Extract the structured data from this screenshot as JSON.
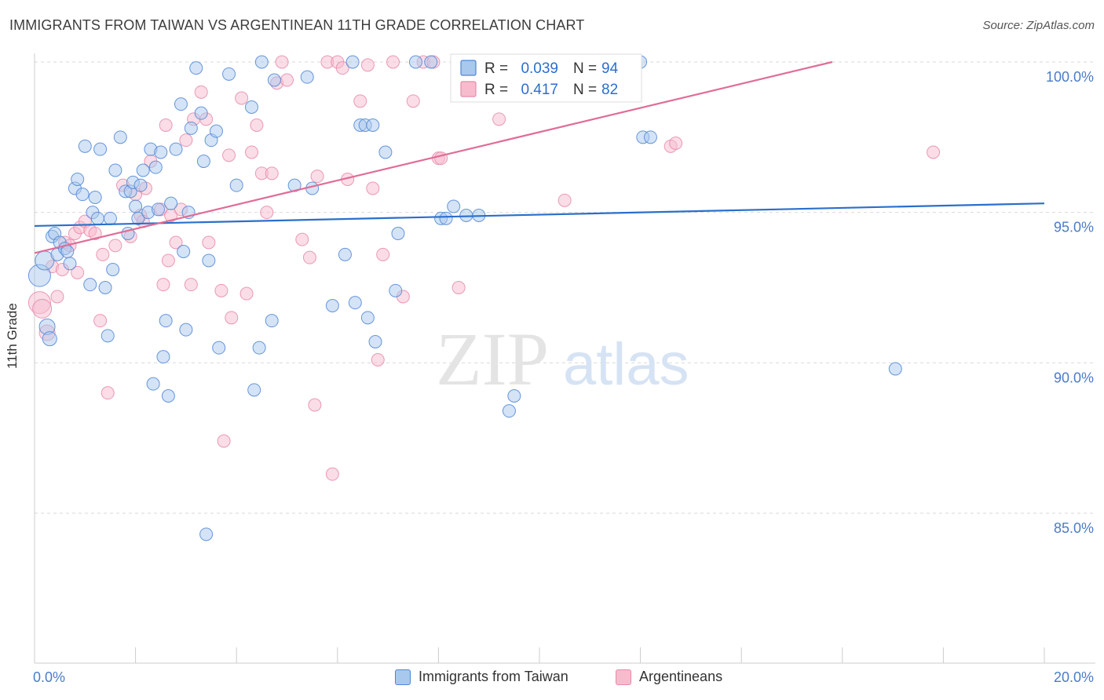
{
  "header": {
    "title": "IMMIGRANTS FROM TAIWAN VS ARGENTINEAN 11TH GRADE CORRELATION CHART",
    "source": "Source: ZipAtlas.com"
  },
  "watermark": {
    "zip": "ZIP",
    "atlas": "atlas"
  },
  "colors": {
    "blue_fill": "#a9c8ee",
    "blue_stroke": "#4f86d6",
    "blue_line": "#2a6fcc",
    "pink_fill": "#f6bccd",
    "pink_stroke": "#e88aa9",
    "pink_line": "#e06d97",
    "tick_label": "#4a7cc9",
    "grid": "#d9d9d9"
  },
  "legend_top": {
    "rows": [
      {
        "r_label": "R = ",
        "r_value": "0.039",
        "n_label": "N = ",
        "n_value": "94"
      },
      {
        "r_label": "R = ",
        "r_value": "0.417",
        "n_label": "N = ",
        "n_value": "82"
      }
    ]
  },
  "legend_bottom": {
    "items": [
      "Immigrants from Taiwan",
      "Argentineans"
    ]
  },
  "chart_data": {
    "type": "scatter",
    "title": "IMMIGRANTS FROM TAIWAN VS ARGENTINEAN 11TH GRADE CORRELATION CHART",
    "xlabel": "",
    "ylabel": "11th Grade",
    "xlim": [
      0,
      20
    ],
    "ylim": [
      80.5,
      100.5
    ],
    "x_tick_labels": [
      "0.0%",
      "20.0%"
    ],
    "y_ticks": [
      85,
      90,
      95,
      100
    ],
    "y_tick_labels": [
      "85.0%",
      "90.0%",
      "95.0%",
      "100.0%"
    ],
    "grid": true,
    "legend_position": "top-center",
    "series": [
      {
        "name": "Immigrants from Taiwan",
        "R": 0.039,
        "N": 94,
        "trend": {
          "x0": 0,
          "y0": 94.55,
          "x1": 20,
          "y1": 95.3
        },
        "points": [
          [
            0.1,
            92.9,
            14
          ],
          [
            0.2,
            93.4,
            12
          ],
          [
            0.25,
            91.2,
            10
          ],
          [
            0.3,
            90.8,
            9
          ],
          [
            0.35,
            94.2,
            8
          ],
          [
            0.4,
            94.3,
            8
          ],
          [
            0.45,
            93.6,
            8
          ],
          [
            0.5,
            94.0,
            8
          ],
          [
            0.6,
            93.8,
            8
          ],
          [
            0.65,
            93.7,
            8
          ],
          [
            0.7,
            93.3,
            8
          ],
          [
            0.8,
            95.8,
            8
          ],
          [
            0.85,
            96.1,
            8
          ],
          [
            0.95,
            95.6,
            8
          ],
          [
            1.0,
            97.2,
            8
          ],
          [
            1.1,
            92.6,
            8
          ],
          [
            1.15,
            95.0,
            8
          ],
          [
            1.2,
            95.5,
            8
          ],
          [
            1.25,
            94.8,
            8
          ],
          [
            1.3,
            97.1,
            8
          ],
          [
            1.4,
            92.5,
            8
          ],
          [
            1.45,
            90.9,
            8
          ],
          [
            1.55,
            93.1,
            8
          ],
          [
            1.6,
            96.4,
            8
          ],
          [
            1.7,
            97.5,
            8
          ],
          [
            1.8,
            95.7,
            8
          ],
          [
            1.85,
            94.3,
            8
          ],
          [
            1.9,
            95.7,
            8
          ],
          [
            1.95,
            96.0,
            8
          ],
          [
            2.0,
            95.2,
            8
          ],
          [
            2.05,
            94.8,
            8
          ],
          [
            2.1,
            95.9,
            8
          ],
          [
            2.15,
            96.4,
            8
          ],
          [
            2.25,
            95.0,
            8
          ],
          [
            2.3,
            97.1,
            8
          ],
          [
            2.35,
            89.3,
            8
          ],
          [
            2.4,
            96.5,
            8
          ],
          [
            2.45,
            95.1,
            8
          ],
          [
            2.5,
            97.0,
            8
          ],
          [
            2.55,
            90.2,
            8
          ],
          [
            2.6,
            91.4,
            8
          ],
          [
            2.65,
            88.9,
            8
          ],
          [
            2.7,
            95.3,
            8
          ],
          [
            2.8,
            97.1,
            8
          ],
          [
            2.9,
            98.6,
            8
          ],
          [
            2.95,
            93.7,
            8
          ],
          [
            3.0,
            91.1,
            8
          ],
          [
            3.05,
            95.0,
            8
          ],
          [
            3.1,
            97.8,
            8
          ],
          [
            3.2,
            99.8,
            8
          ],
          [
            3.3,
            98.3,
            8
          ],
          [
            3.35,
            96.7,
            8
          ],
          [
            3.45,
            93.4,
            8
          ],
          [
            3.5,
            97.4,
            8
          ],
          [
            3.6,
            97.7,
            8
          ],
          [
            3.65,
            90.5,
            8
          ],
          [
            3.85,
            99.6,
            8
          ],
          [
            4.0,
            95.9,
            8
          ],
          [
            4.3,
            98.5,
            8
          ],
          [
            4.35,
            89.1,
            8
          ],
          [
            4.45,
            90.5,
            8
          ],
          [
            4.5,
            100.0,
            8
          ],
          [
            4.7,
            91.4,
            8
          ],
          [
            4.75,
            99.4,
            8
          ],
          [
            5.15,
            95.9,
            8
          ],
          [
            5.4,
            99.5,
            8
          ],
          [
            5.5,
            95.8,
            8
          ],
          [
            5.9,
            91.9,
            8
          ],
          [
            6.15,
            93.6,
            8
          ],
          [
            6.3,
            100.0,
            8
          ],
          [
            6.35,
            92.0,
            8
          ],
          [
            6.45,
            97.9,
            8
          ],
          [
            6.55,
            97.9,
            8
          ],
          [
            6.6,
            91.5,
            8
          ],
          [
            6.7,
            97.9,
            8
          ],
          [
            6.75,
            90.7,
            8
          ],
          [
            6.95,
            97.0,
            8
          ],
          [
            7.15,
            92.4,
            8
          ],
          [
            7.2,
            94.3,
            8
          ],
          [
            7.55,
            100.0,
            8
          ],
          [
            7.85,
            100.0,
            8
          ],
          [
            8.05,
            94.8,
            8
          ],
          [
            8.15,
            94.8,
            8
          ],
          [
            8.3,
            95.2,
            8
          ],
          [
            8.55,
            94.9,
            8
          ],
          [
            8.8,
            94.9,
            8
          ],
          [
            9.4,
            88.4,
            8
          ],
          [
            9.5,
            88.9,
            8
          ],
          [
            12.0,
            100.0,
            8
          ],
          [
            12.05,
            97.5,
            8
          ],
          [
            12.2,
            97.5,
            8
          ],
          [
            17.05,
            89.8,
            8
          ],
          [
            3.4,
            84.3,
            8
          ],
          [
            1.5,
            94.8,
            8
          ]
        ]
      },
      {
        "name": "Argentineans",
        "R": 0.417,
        "N": 82,
        "trend": {
          "x0": 0,
          "y0": 93.65,
          "x1": 15.8,
          "y1": 100.0
        },
        "points": [
          [
            0.1,
            92.0,
            14
          ],
          [
            0.15,
            91.8,
            12
          ],
          [
            0.25,
            91.0,
            10
          ],
          [
            0.35,
            93.2,
            8
          ],
          [
            0.45,
            92.2,
            8
          ],
          [
            0.55,
            93.1,
            8
          ],
          [
            0.6,
            94.0,
            8
          ],
          [
            0.7,
            93.9,
            8
          ],
          [
            0.8,
            94.3,
            8
          ],
          [
            0.85,
            93.0,
            8
          ],
          [
            0.9,
            94.5,
            8
          ],
          [
            1.0,
            94.7,
            8
          ],
          [
            1.1,
            94.4,
            8
          ],
          [
            1.2,
            94.3,
            8
          ],
          [
            1.3,
            91.4,
            8
          ],
          [
            1.35,
            93.6,
            8
          ],
          [
            1.45,
            89.0,
            8
          ],
          [
            1.6,
            93.9,
            8
          ],
          [
            1.75,
            95.9,
            8
          ],
          [
            1.9,
            94.2,
            8
          ],
          [
            2.0,
            95.6,
            8
          ],
          [
            2.1,
            94.9,
            8
          ],
          [
            2.15,
            94.7,
            8
          ],
          [
            2.2,
            95.8,
            8
          ],
          [
            2.3,
            96.7,
            8
          ],
          [
            2.5,
            95.1,
            8
          ],
          [
            2.55,
            92.6,
            8
          ],
          [
            2.6,
            97.9,
            8
          ],
          [
            2.65,
            93.4,
            8
          ],
          [
            2.7,
            94.9,
            8
          ],
          [
            2.8,
            94.0,
            8
          ],
          [
            2.9,
            95.1,
            8
          ],
          [
            3.0,
            97.4,
            8
          ],
          [
            3.1,
            92.6,
            8
          ],
          [
            3.15,
            98.1,
            8
          ],
          [
            3.3,
            99.0,
            8
          ],
          [
            3.4,
            98.1,
            8
          ],
          [
            3.45,
            94.0,
            8
          ],
          [
            3.7,
            92.4,
            8
          ],
          [
            3.75,
            87.4,
            8
          ],
          [
            3.85,
            96.9,
            8
          ],
          [
            3.9,
            91.5,
            8
          ],
          [
            4.1,
            98.8,
            8
          ],
          [
            4.2,
            92.3,
            8
          ],
          [
            4.3,
            97.0,
            8
          ],
          [
            4.4,
            97.9,
            8
          ],
          [
            4.5,
            96.3,
            8
          ],
          [
            4.6,
            95.0,
            8
          ],
          [
            4.7,
            96.3,
            8
          ],
          [
            4.8,
            99.3,
            8
          ],
          [
            4.9,
            100.0,
            8
          ],
          [
            5.0,
            99.4,
            8
          ],
          [
            5.3,
            94.1,
            8
          ],
          [
            5.45,
            93.5,
            8
          ],
          [
            5.55,
            88.6,
            8
          ],
          [
            5.6,
            96.2,
            8
          ],
          [
            5.8,
            100.0,
            8
          ],
          [
            5.9,
            86.3,
            8
          ],
          [
            6.0,
            100.0,
            8
          ],
          [
            6.1,
            99.8,
            8
          ],
          [
            6.2,
            96.1,
            8
          ],
          [
            6.45,
            98.7,
            8
          ],
          [
            6.6,
            99.9,
            8
          ],
          [
            6.7,
            95.8,
            8
          ],
          [
            6.8,
            90.1,
            8
          ],
          [
            6.9,
            93.6,
            8
          ],
          [
            7.1,
            100.0,
            8
          ],
          [
            7.3,
            92.2,
            8
          ],
          [
            7.5,
            98.7,
            8
          ],
          [
            7.7,
            100.0,
            8
          ],
          [
            7.9,
            100.0,
            8
          ],
          [
            8.0,
            96.8,
            8
          ],
          [
            8.05,
            96.8,
            8
          ],
          [
            8.4,
            92.5,
            8
          ],
          [
            8.6,
            100.0,
            8
          ],
          [
            8.9,
            100.0,
            8
          ],
          [
            9.2,
            98.1,
            8
          ],
          [
            10.5,
            95.4,
            8
          ],
          [
            12.6,
            97.2,
            8
          ],
          [
            12.7,
            97.3,
            8
          ],
          [
            17.8,
            97.0,
            8
          ],
          [
            9.7,
            100.0,
            8
          ]
        ]
      }
    ]
  }
}
